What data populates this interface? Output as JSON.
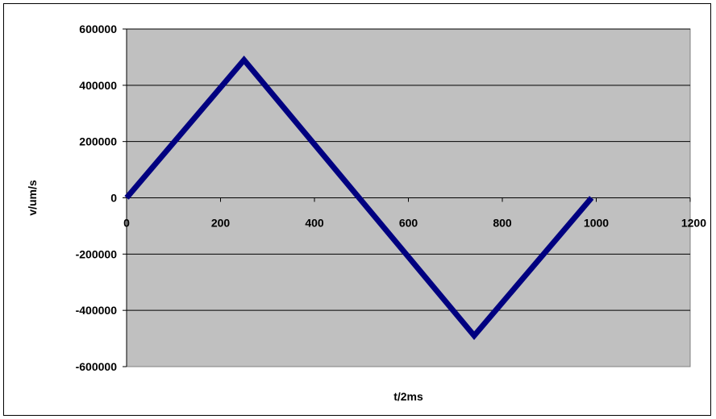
{
  "chart_data": {
    "type": "line",
    "title": "",
    "xlabel": "t/2ms",
    "ylabel": "v/um/s",
    "xlim": [
      0,
      1200
    ],
    "ylim": [
      -600000,
      600000
    ],
    "x_ticks": [
      0,
      200,
      400,
      600,
      800,
      1000,
      1200
    ],
    "y_ticks": [
      600000,
      400000,
      200000,
      0,
      -200000,
      -400000,
      -600000
    ],
    "x_tick_labels": [
      "0",
      "200",
      "400",
      "600",
      "800",
      "1000",
      "1200"
    ],
    "y_tick_labels": [
      "600000",
      "400000",
      "200000",
      "0",
      "-200000",
      "-400000",
      "-600000"
    ],
    "grid": "horizontal",
    "legend": "none",
    "series": [
      {
        "x": [
          0,
          250,
          740,
          990
        ],
        "y": [
          0,
          490000,
          -490000,
          0
        ]
      }
    ],
    "colors": {
      "plot_background": "#C0C0C0",
      "line": "#000080",
      "gridline": "#000000"
    }
  }
}
